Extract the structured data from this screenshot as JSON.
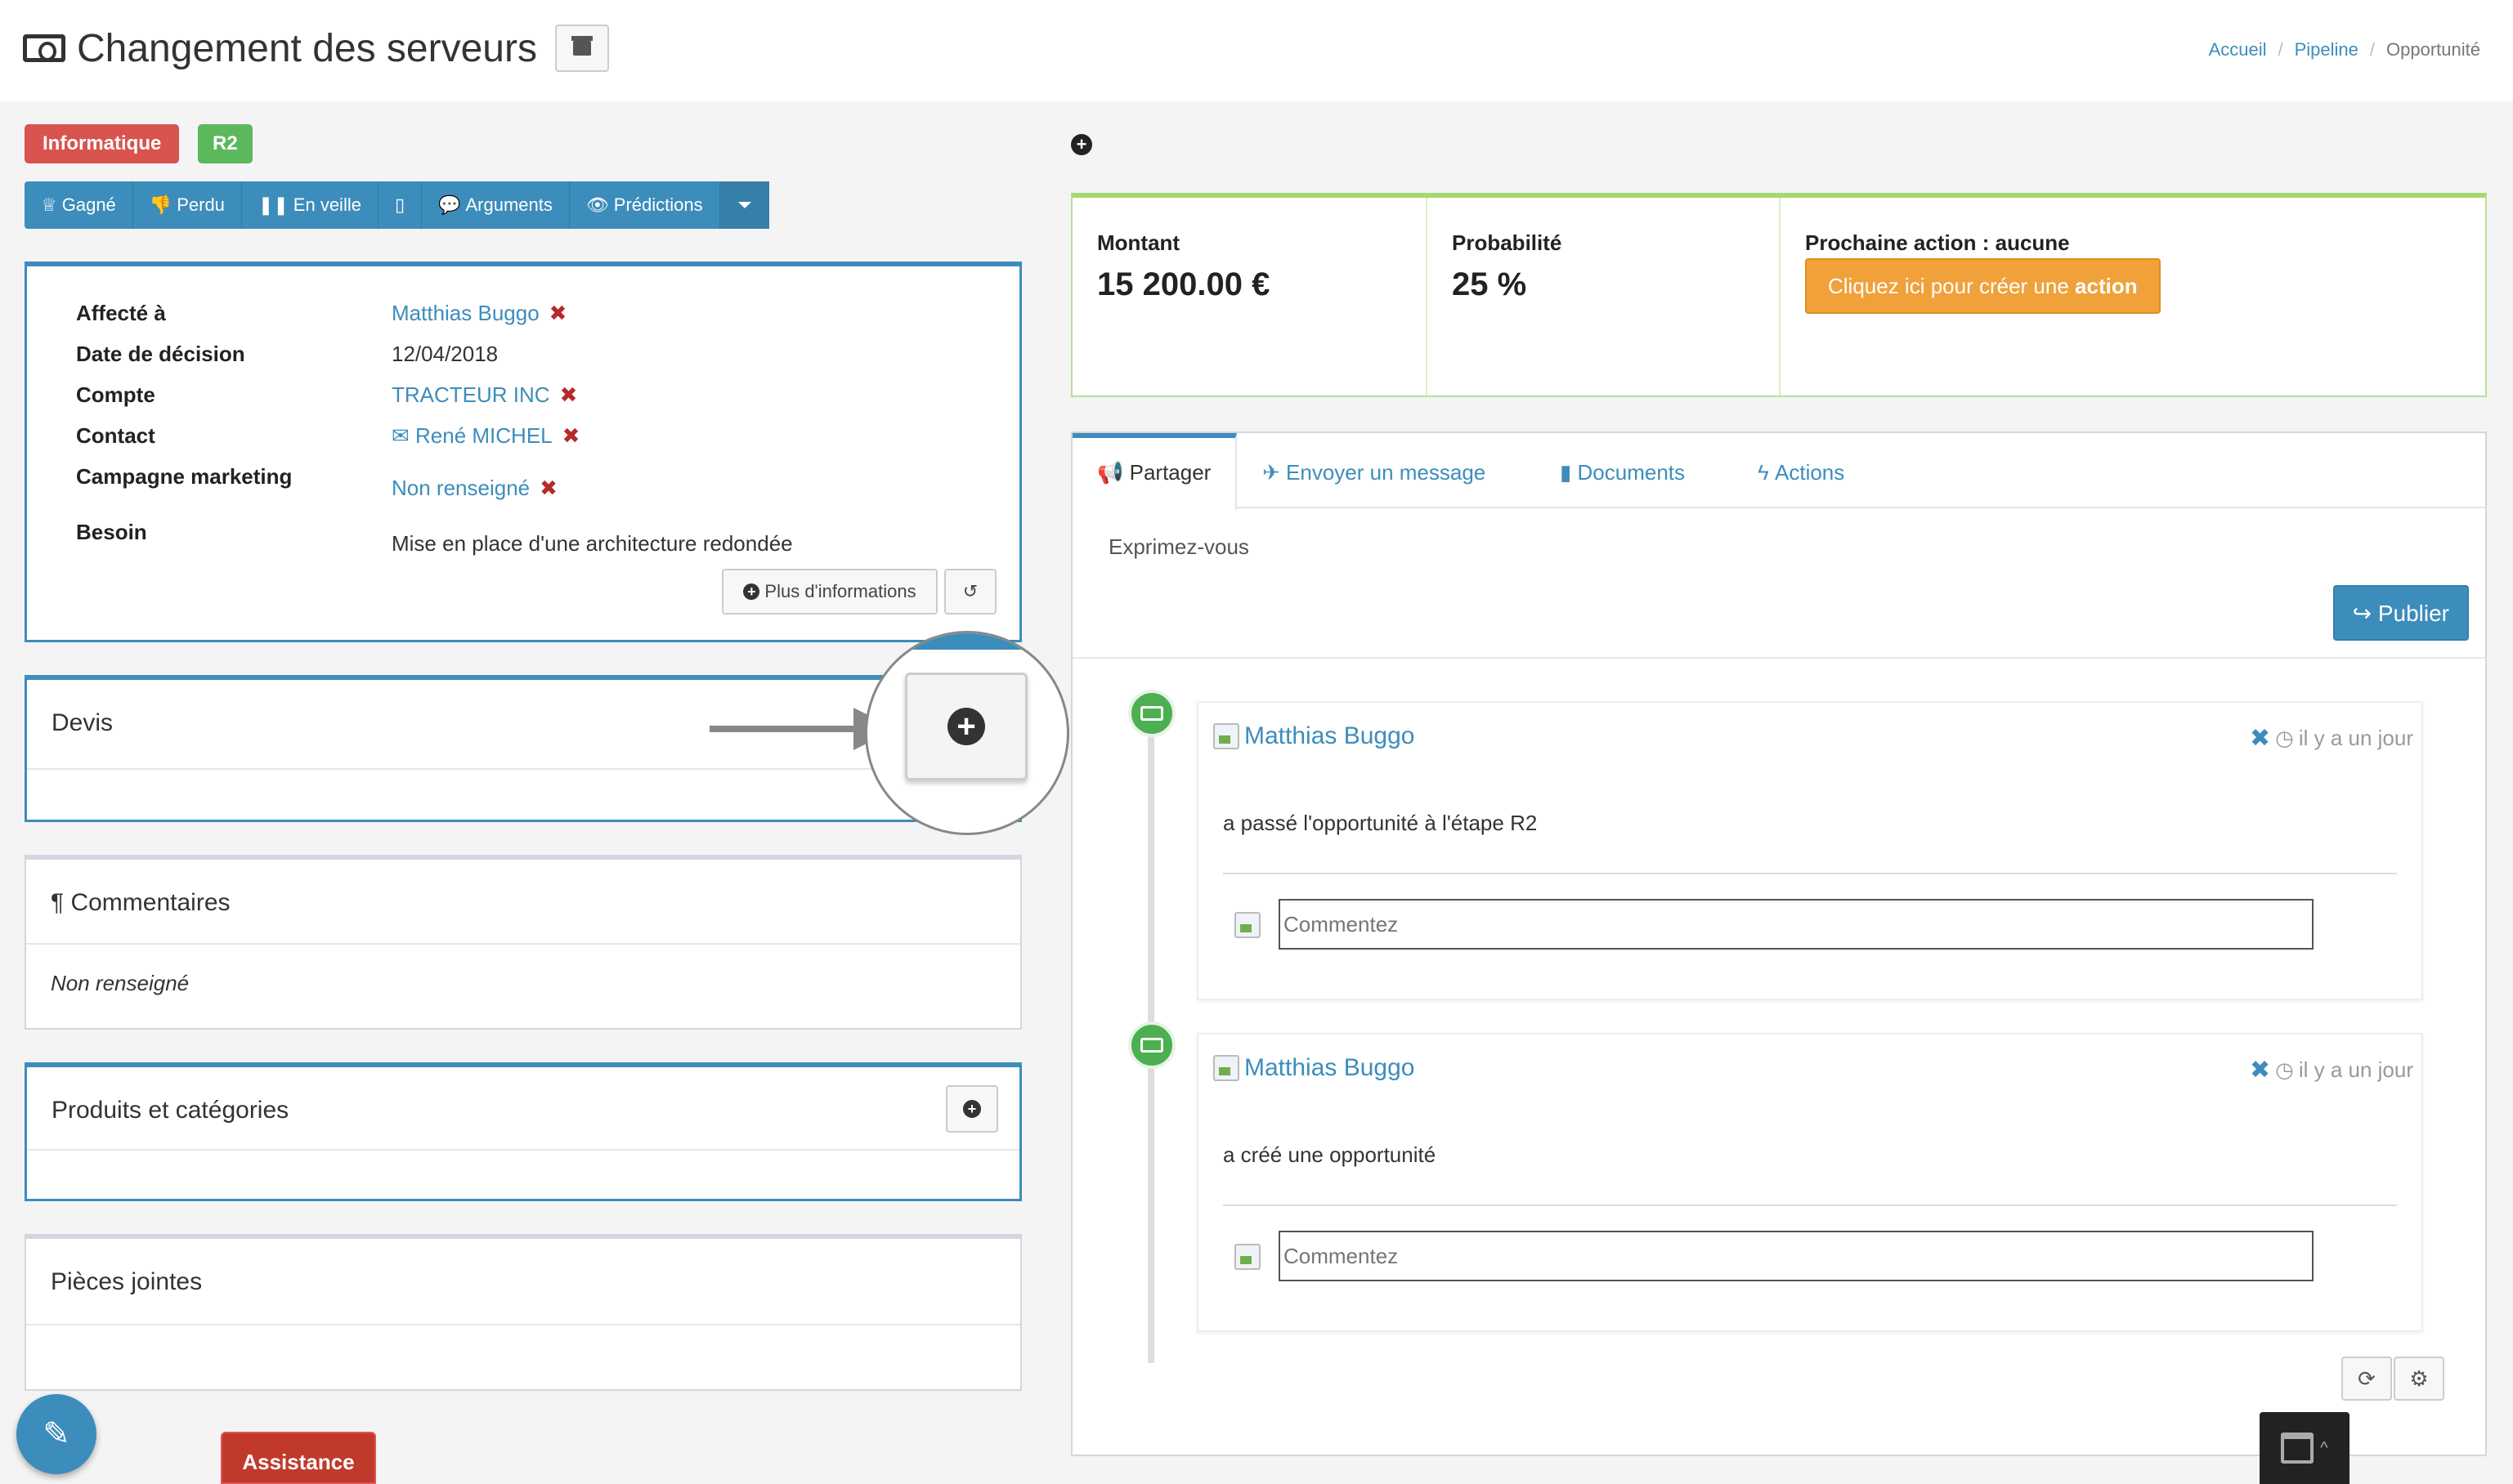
{
  "header": {
    "title": "Changement des serveurs",
    "breadcrumb": [
      "Accueil",
      "Pipeline",
      "Opportunité"
    ]
  },
  "labels": {
    "category": "Informatique",
    "stage": "R2"
  },
  "actions": {
    "won": "Gagné",
    "lost": "Perdu",
    "standby": "En veille",
    "arguments": "Arguments",
    "predictions": "Prédictions"
  },
  "info": {
    "assigned_label": "Affecté à",
    "assigned_value": "Matthias Buggo",
    "decision_label": "Date de décision",
    "decision_value": "12/04/2018",
    "account_label": "Compte",
    "account_value": "TRACTEUR INC",
    "contact_label": "Contact",
    "contact_value": "René MICHEL",
    "campaign_label": "Campagne marketing",
    "campaign_value": "Non renseigné",
    "need_label": "Besoin",
    "need_value": "Mise en place d'une architecture redondée",
    "more_info": "Plus d'informations"
  },
  "quotes": {
    "title": "Devis"
  },
  "comments": {
    "title": "Commentaires",
    "value": "Non renseigné"
  },
  "products": {
    "title": "Produits et catégories"
  },
  "attachments": {
    "title": "Pièces jointes"
  },
  "stats": {
    "amount_label": "Montant",
    "amount_value": "15 200.00 €",
    "probability_label": "Probabilité",
    "probability_value": "25 %",
    "next_action_label": "Prochaine action : aucune",
    "create_action_text": "Cliquez ici pour créer une",
    "create_action_bold": "action"
  },
  "tabs": [
    "Partager",
    "Envoyer un message",
    "Documents",
    "Actions"
  ],
  "share": {
    "placeholder": "Exprimez-vous",
    "publish": "Publier"
  },
  "timeline": [
    {
      "author": "Matthias Buggo",
      "time": "il y a un jour",
      "text": "a passé l'opportunité à l'étape R2",
      "comment_placeholder": "Commentez"
    },
    {
      "author": "Matthias Buggo",
      "time": "il y a un jour",
      "text": "a créé une opportunité",
      "comment_placeholder": "Commentez"
    }
  ],
  "footer": {
    "assistance": "Assistance"
  },
  "colors": {
    "primary": "#3c8dbc",
    "danger": "#d9534f",
    "success": "#5cb85c",
    "warning": "#f0a13a"
  }
}
